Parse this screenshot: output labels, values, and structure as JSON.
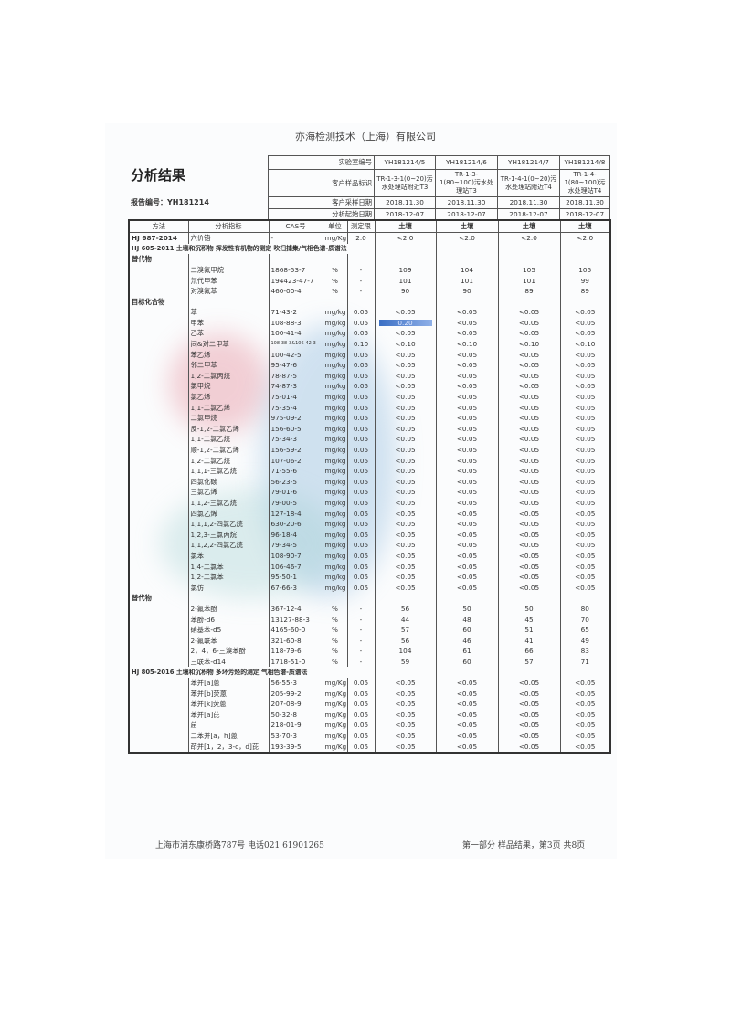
{
  "company": "亦海检测技术（上海）有限公司",
  "title": "分析结果",
  "report_number": "报告编号：YH181214",
  "header": {
    "labels": [
      "实验室编号",
      "客户样品标识",
      "客户采样日期",
      "分析起始日期"
    ],
    "samples": [
      {
        "lab_id": "YH181214/5",
        "client_id": "TR-1-3-1(0~20)污水处理站附近T3",
        "sampling_date": "2018.11.30",
        "analysis_date": "2018-12-07",
        "matrix": "土壤"
      },
      {
        "lab_id": "YH181214/6",
        "client_id": "TR-1-3-1(80~100)污水处理站T3",
        "sampling_date": "2018.11.30",
        "analysis_date": "2018-12-07",
        "matrix": "土壤"
      },
      {
        "lab_id": "YH181214/7",
        "client_id": "TR-1-4-1(0~20)污水处理站附近T4",
        "sampling_date": "2018.11.30",
        "analysis_date": "2018-12-07",
        "matrix": "土壤"
      },
      {
        "lab_id": "YH181214/8",
        "client_id": "TR-1-4-1(80~100)污水处理站T4",
        "sampling_date": "2018.11.30",
        "analysis_date": "2018-12-07",
        "matrix": "土壤"
      }
    ]
  },
  "columns": [
    "方法",
    "分析指标",
    "CAS号",
    "单位",
    "测定限"
  ],
  "rows": [
    {
      "type": "data",
      "method": "HJ 687-2014",
      "name": "六价铬",
      "cas": "-",
      "unit": "mg/Kg",
      "lod": "2.0",
      "values": [
        "<2.0",
        "<2.0",
        "<2.0",
        "<2.0"
      ]
    },
    {
      "type": "section",
      "text": "HJ 605-2011 土壤和沉积物 挥发性有机物的测定 吹扫捕集/气相色谱-质谱法"
    },
    {
      "type": "sub",
      "text": "替代物"
    },
    {
      "type": "data",
      "name": "二溴氟甲烷",
      "cas": "1868-53-7",
      "unit": "%",
      "lod": "-",
      "values": [
        "109",
        "104",
        "105",
        "105"
      ]
    },
    {
      "type": "data",
      "name": "氘代甲苯",
      "cas": "194423-47-7",
      "unit": "%",
      "lod": "-",
      "values": [
        "101",
        "101",
        "101",
        "99"
      ]
    },
    {
      "type": "data",
      "name": "对溴氟苯",
      "cas": "460-00-4",
      "unit": "%",
      "lod": "-",
      "values": [
        "90",
        "90",
        "89",
        "89"
      ]
    },
    {
      "type": "sub",
      "text": "目标化合物"
    },
    {
      "type": "data",
      "name": "苯",
      "cas": "71-43-2",
      "unit": "mg/kg",
      "lod": "0.05",
      "values": [
        "<0.05",
        "<0.05",
        "<0.05",
        "<0.05"
      ]
    },
    {
      "type": "data",
      "name": "甲苯",
      "cas": "108-88-3",
      "unit": "mg/kg",
      "lod": "0.05",
      "values": [
        "0.20",
        "<0.05",
        "<0.05",
        "<0.05"
      ],
      "highlight": 0
    },
    {
      "type": "data",
      "name": "乙苯",
      "cas": "100-41-4",
      "unit": "mg/kg",
      "lod": "0.05",
      "values": [
        "<0.05",
        "<0.05",
        "<0.05",
        "<0.05"
      ]
    },
    {
      "type": "data",
      "name": "间&对二甲苯",
      "cas": "108-38-3&106-42-3",
      "unit": "mg/kg",
      "lod": "0.10",
      "values": [
        "<0.10",
        "<0.10",
        "<0.10",
        "<0.10"
      ]
    },
    {
      "type": "data",
      "name": "苯乙烯",
      "cas": "100-42-5",
      "unit": "mg/kg",
      "lod": "0.05",
      "values": [
        "<0.05",
        "<0.05",
        "<0.05",
        "<0.05"
      ]
    },
    {
      "type": "data",
      "name": "邻二甲苯",
      "cas": "95-47-6",
      "unit": "mg/kg",
      "lod": "0.05",
      "values": [
        "<0.05",
        "<0.05",
        "<0.05",
        "<0.05"
      ]
    },
    {
      "type": "data",
      "name": "1,2-二氯丙烷",
      "cas": "78-87-5",
      "unit": "mg/kg",
      "lod": "0.05",
      "values": [
        "<0.05",
        "<0.05",
        "<0.05",
        "<0.05"
      ]
    },
    {
      "type": "data",
      "name": "氯甲烷",
      "cas": "74-87-3",
      "unit": "mg/kg",
      "lod": "0.05",
      "values": [
        "<0.05",
        "<0.05",
        "<0.05",
        "<0.05"
      ]
    },
    {
      "type": "data",
      "name": "氯乙烯",
      "cas": "75-01-4",
      "unit": "mg/kg",
      "lod": "0.05",
      "values": [
        "<0.05",
        "<0.05",
        "<0.05",
        "<0.05"
      ]
    },
    {
      "type": "data",
      "name": "1,1-二氯乙烯",
      "cas": "75-35-4",
      "unit": "mg/kg",
      "lod": "0.05",
      "values": [
        "<0.05",
        "<0.05",
        "<0.05",
        "<0.05"
      ]
    },
    {
      "type": "data",
      "name": "二氯甲烷",
      "cas": "975-09-2",
      "unit": "mg/kg",
      "lod": "0.05",
      "values": [
        "<0.05",
        "<0.05",
        "<0.05",
        "<0.05"
      ]
    },
    {
      "type": "data",
      "name": "反-1,2-二氯乙烯",
      "cas": "156-60-5",
      "unit": "mg/kg",
      "lod": "0.05",
      "values": [
        "<0.05",
        "<0.05",
        "<0.05",
        "<0.05"
      ]
    },
    {
      "type": "data",
      "name": "1,1-二氯乙烷",
      "cas": "75-34-3",
      "unit": "mg/kg",
      "lod": "0.05",
      "values": [
        "<0.05",
        "<0.05",
        "<0.05",
        "<0.05"
      ]
    },
    {
      "type": "data",
      "name": "顺-1,2-二氯乙烯",
      "cas": "156-59-2",
      "unit": "mg/kg",
      "lod": "0.05",
      "values": [
        "<0.05",
        "<0.05",
        "<0.05",
        "<0.05"
      ]
    },
    {
      "type": "data",
      "name": "1,2-二氯乙烷",
      "cas": "107-06-2",
      "unit": "mg/kg",
      "lod": "0.05",
      "values": [
        "<0.05",
        "<0.05",
        "<0.05",
        "<0.05"
      ]
    },
    {
      "type": "data",
      "name": "1,1,1-三氯乙烷",
      "cas": "71-55-6",
      "unit": "mg/kg",
      "lod": "0.05",
      "values": [
        "<0.05",
        "<0.05",
        "<0.05",
        "<0.05"
      ]
    },
    {
      "type": "data",
      "name": "四氯化碳",
      "cas": "56-23-5",
      "unit": "mg/kg",
      "lod": "0.05",
      "values": [
        "<0.05",
        "<0.05",
        "<0.05",
        "<0.05"
      ]
    },
    {
      "type": "data",
      "name": "三氯乙烯",
      "cas": "79-01-6",
      "unit": "mg/kg",
      "lod": "0.05",
      "values": [
        "<0.05",
        "<0.05",
        "<0.05",
        "<0.05"
      ]
    },
    {
      "type": "data",
      "name": "1,1,2-三氯乙烷",
      "cas": "79-00-5",
      "unit": "mg/kg",
      "lod": "0.05",
      "values": [
        "<0.05",
        "<0.05",
        "<0.05",
        "<0.05"
      ]
    },
    {
      "type": "data",
      "name": "四氯乙烯",
      "cas": "127-18-4",
      "unit": "mg/kg",
      "lod": "0.05",
      "values": [
        "<0.05",
        "<0.05",
        "<0.05",
        "<0.05"
      ]
    },
    {
      "type": "data",
      "name": "1,1,1,2-四氯乙烷",
      "cas": "630-20-6",
      "unit": "mg/kg",
      "lod": "0.05",
      "values": [
        "<0.05",
        "<0.05",
        "<0.05",
        "<0.05"
      ]
    },
    {
      "type": "data",
      "name": "1,2,3-三氯丙烷",
      "cas": "96-18-4",
      "unit": "mg/kg",
      "lod": "0.05",
      "values": [
        "<0.05",
        "<0.05",
        "<0.05",
        "<0.05"
      ]
    },
    {
      "type": "data",
      "name": "1,1,2,2-四氯乙烷",
      "cas": "79-34-5",
      "unit": "mg/kg",
      "lod": "0.05",
      "values": [
        "<0.05",
        "<0.05",
        "<0.05",
        "<0.05"
      ]
    },
    {
      "type": "data",
      "name": "氯苯",
      "cas": "108-90-7",
      "unit": "mg/kg",
      "lod": "0.05",
      "values": [
        "<0.05",
        "<0.05",
        "<0.05",
        "<0.05"
      ]
    },
    {
      "type": "data",
      "name": "1,4-二氯苯",
      "cas": "106-46-7",
      "unit": "mg/kg",
      "lod": "0.05",
      "values": [
        "<0.05",
        "<0.05",
        "<0.05",
        "<0.05"
      ]
    },
    {
      "type": "data",
      "name": "1,2-二氯苯",
      "cas": "95-50-1",
      "unit": "mg/kg",
      "lod": "0.05",
      "values": [
        "<0.05",
        "<0.05",
        "<0.05",
        "<0.05"
      ]
    },
    {
      "type": "data",
      "name": "氯仿",
      "cas": "67-66-3",
      "unit": "mg/kg",
      "lod": "0.05",
      "values": [
        "<0.05",
        "<0.05",
        "<0.05",
        "<0.05"
      ]
    },
    {
      "type": "sub",
      "text": "替代物"
    },
    {
      "type": "data",
      "name": "2-氟苯酚",
      "cas": "367-12-4",
      "unit": "%",
      "lod": "-",
      "values": [
        "56",
        "50",
        "50",
        "80"
      ]
    },
    {
      "type": "data",
      "name": "苯酚-d6",
      "cas": "13127-88-3",
      "unit": "%",
      "lod": "-",
      "values": [
        "44",
        "48",
        "45",
        "70"
      ]
    },
    {
      "type": "data",
      "name": "硝基苯-d5",
      "cas": "4165-60-0",
      "unit": "%",
      "lod": "-",
      "values": [
        "57",
        "60",
        "51",
        "65"
      ]
    },
    {
      "type": "data",
      "name": "2-氟联苯",
      "cas": "321-60-8",
      "unit": "%",
      "lod": "-",
      "values": [
        "56",
        "46",
        "41",
        "49"
      ]
    },
    {
      "type": "data",
      "name": "2，4，6-三溴苯酚",
      "cas": "118-79-6",
      "unit": "%",
      "lod": "-",
      "values": [
        "104",
        "61",
        "66",
        "83"
      ]
    },
    {
      "type": "data",
      "name": "三联苯-d14",
      "cas": "1718-51-0",
      "unit": "%",
      "lod": "-",
      "values": [
        "59",
        "60",
        "57",
        "71"
      ]
    },
    {
      "type": "section",
      "text": "HJ 805-2016 土壤和沉积物 多环芳烃的测定 气相色谱-质谱法"
    },
    {
      "type": "data",
      "name": "苯并[a]蒽",
      "cas": "56-55-3",
      "unit": "mg/Kg",
      "lod": "0.05",
      "values": [
        "<0.05",
        "<0.05",
        "<0.05",
        "<0.05"
      ]
    },
    {
      "type": "data",
      "name": "苯并[b]荧蒽",
      "cas": "205-99-2",
      "unit": "mg/Kg",
      "lod": "0.05",
      "values": [
        "<0.05",
        "<0.05",
        "<0.05",
        "<0.05"
      ]
    },
    {
      "type": "data",
      "name": "苯并[k]荧蒽",
      "cas": "207-08-9",
      "unit": "mg/Kg",
      "lod": "0.05",
      "values": [
        "<0.05",
        "<0.05",
        "<0.05",
        "<0.05"
      ]
    },
    {
      "type": "data",
      "name": "苯并[a]芘",
      "cas": "50-32-8",
      "unit": "mg/Kg",
      "lod": "0.05",
      "values": [
        "<0.05",
        "<0.05",
        "<0.05",
        "<0.05"
      ]
    },
    {
      "type": "data",
      "name": "䓛",
      "cas": "218-01-9",
      "unit": "mg/Kg",
      "lod": "0.05",
      "values": [
        "<0.05",
        "<0.05",
        "<0.05",
        "<0.05"
      ]
    },
    {
      "type": "data",
      "name": "二苯并[a，h]蒽",
      "cas": "53-70-3",
      "unit": "mg/Kg",
      "lod": "0.05",
      "values": [
        "<0.05",
        "<0.05",
        "<0.05",
        "<0.05"
      ]
    },
    {
      "type": "data",
      "name": "茚并[1，2，3-c，d]芘",
      "cas": "193-39-5",
      "unit": "mg/Kg",
      "lod": "0.05",
      "values": [
        "<0.05",
        "<0.05",
        "<0.05",
        "<0.05"
      ]
    }
  ],
  "footer": {
    "address": "上海市浦东康桥路787号  电话021 61901265",
    "page": "第一部分  样品结果，第3页  共8页"
  }
}
